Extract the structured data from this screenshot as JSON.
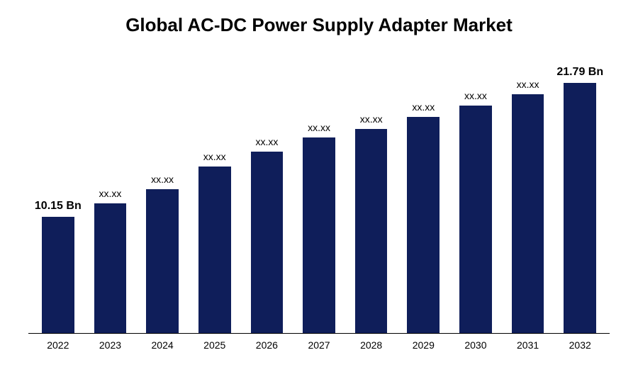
{
  "chart": {
    "type": "bar",
    "title": "Global AC-DC Power Supply Adapter Market",
    "title_fontsize": 26,
    "title_fontweight": "bold",
    "title_color": "#000000",
    "background_color": "#ffffff",
    "bar_color": "#0f1e5a",
    "axis_line_color": "#000000",
    "categories": [
      "2022",
      "2023",
      "2024",
      "2025",
      "2026",
      "2027",
      "2028",
      "2029",
      "2030",
      "2031",
      "2032"
    ],
    "values": [
      10.15,
      11.3,
      12.5,
      14.5,
      15.8,
      17.0,
      17.8,
      18.8,
      19.8,
      20.8,
      21.79
    ],
    "value_labels": [
      "10.15 Bn",
      "xx.xx",
      "xx.xx",
      "xx.xx",
      "xx.xx",
      "xx.xx",
      "xx.xx",
      "xx.xx",
      "xx.xx",
      "xx.xx",
      "21.79 Bn"
    ],
    "bold_labels": [
      true,
      false,
      false,
      false,
      false,
      false,
      false,
      false,
      false,
      false,
      true
    ],
    "y_max": 24,
    "bar_width_pct": 62,
    "label_fontsize": 14,
    "label_bold_fontsize": 16,
    "category_fontsize": 14,
    "category_color": "#000000"
  }
}
